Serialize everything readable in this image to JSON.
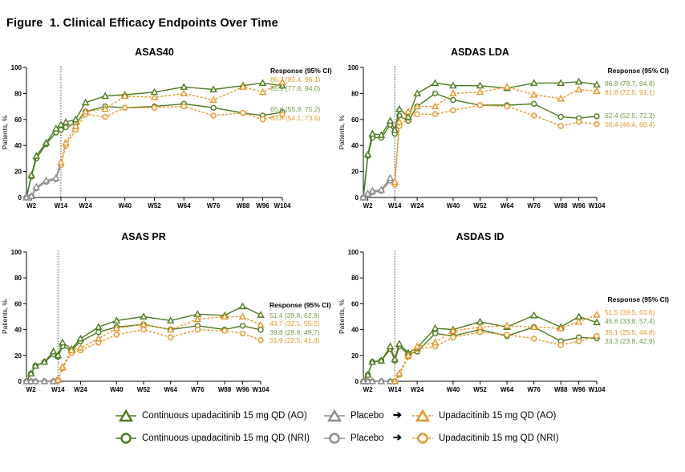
{
  "figure_title": "Figure  1. Clinical Efficacy Endpoints Over Time",
  "colors": {
    "continuous": "#4a7a1e",
    "continuous_light": "#6f9a46",
    "placebo": "#8c8c8c",
    "switch": "#e59526"
  },
  "legend": {
    "ao_continuous": "Continuous upadacitinib 15 mg QD (AO)",
    "ao_placebo": "Placebo",
    "ao_switch": "Upadacitinib 15 mg QD (AO)",
    "nri_continuous": "Continuous upadacitinib 15 mg QD (NRI)",
    "nri_placebo": "Placebo",
    "nri_switch": "Upadacitinib 15 mg QD (NRI)",
    "arrow": "➔"
  },
  "chart_data": [
    {
      "type": "line",
      "title": "ASAS40",
      "ylabel": "Patients, %",
      "ylim": [
        0,
        100
      ],
      "yticks": [
        0,
        20,
        40,
        60,
        80,
        100
      ],
      "xlim": [
        0,
        104
      ],
      "xticks": [
        {
          "w": 2,
          "label": "W2"
        },
        {
          "w": 14,
          "label": "W14"
        },
        {
          "w": 24,
          "label": "W24"
        },
        {
          "w": 40,
          "label": "W40"
        },
        {
          "w": 52,
          "label": "W52"
        },
        {
          "w": 64,
          "label": "W64"
        },
        {
          "w": 76,
          "label": "W76"
        },
        {
          "w": 88,
          "label": "W88"
        },
        {
          "w": 96,
          "label": "W96"
        },
        {
          "w": 104,
          "label": "W104"
        }
      ],
      "switch_week": 14,
      "response_header": "Response (95% CI)",
      "series": [
        {
          "name": "Continuous upadacitinib 15 mg QD (AO)",
          "group": "continuous",
          "marker": "triangle",
          "x": [
            0,
            2,
            4,
            8,
            12,
            14,
            16,
            20,
            24,
            32,
            40,
            52,
            64,
            76,
            88,
            96,
            104
          ],
          "y": [
            0,
            17,
            32,
            42,
            53,
            56,
            58,
            60,
            73,
            78,
            79,
            81,
            85,
            83,
            86,
            88,
            86
          ]
        },
        {
          "name": "Continuous upadacitinib 15 mg QD (NRI)",
          "group": "continuous",
          "marker": "circle",
          "x": [
            0,
            2,
            4,
            8,
            12,
            14,
            16,
            20,
            24,
            32,
            40,
            52,
            64,
            76,
            88,
            96,
            104
          ],
          "y": [
            0,
            16,
            30,
            41,
            50,
            52,
            54,
            57,
            66,
            70,
            69,
            70,
            72,
            69,
            65,
            63,
            65.6
          ]
        },
        {
          "name": "Placebo (AO)",
          "group": "placebo",
          "marker": "triangle",
          "x": [
            0,
            2,
            4,
            8,
            12,
            14
          ],
          "y": [
            0,
            1,
            8,
            13,
            15,
            27
          ]
        },
        {
          "name": "Placebo (NRI)",
          "group": "placebo",
          "marker": "circle",
          "x": [
            0,
            2,
            4,
            8,
            12,
            14
          ],
          "y": [
            0,
            1,
            7,
            12,
            14,
            25
          ]
        },
        {
          "name": "Upadacitinib 15 mg QD (AO)",
          "group": "switch",
          "marker": "triangle",
          "x": [
            14,
            16,
            20,
            24,
            32,
            40,
            52,
            64,
            76,
            88,
            96,
            104
          ],
          "y": [
            27,
            42,
            55,
            66,
            68,
            78,
            77,
            80,
            75,
            85,
            81,
            88.7
          ]
        },
        {
          "name": "Upadacitinib 15 mg QD (NRI)",
          "group": "switch",
          "marker": "circle",
          "x": [
            14,
            16,
            20,
            24,
            32,
            40,
            52,
            64,
            76,
            88,
            96,
            104
          ],
          "y": [
            25,
            40,
            52,
            64,
            62,
            69,
            69,
            70,
            63,
            65,
            60,
            63.8
          ]
        }
      ],
      "responses": [
        {
          "text": "88.7 (81.4, 96.1)",
          "group": "switch"
        },
        {
          "text": "85.9 (77.8, 94.0)",
          "group": "continuous"
        },
        {
          "text": "65.6 (55.9, 75.2)",
          "group": "continuous"
        },
        {
          "text": "63.8 (54.1, 73.5)",
          "group": "switch"
        }
      ]
    },
    {
      "type": "line",
      "title": "ASDAS LDA",
      "ylabel": "Patients, %",
      "ylim": [
        0,
        100
      ],
      "yticks": [
        0,
        20,
        40,
        60,
        80,
        100
      ],
      "xlim": [
        0,
        104
      ],
      "xticks": [
        {
          "w": 2,
          "label": "W2"
        },
        {
          "w": 14,
          "label": "W14"
        },
        {
          "w": 24,
          "label": "W24"
        },
        {
          "w": 40,
          "label": "W40"
        },
        {
          "w": 52,
          "label": "W52"
        },
        {
          "w": 64,
          "label": "W64"
        },
        {
          "w": 76,
          "label": "W76"
        },
        {
          "w": 88,
          "label": "W88"
        },
        {
          "w": 96,
          "label": "W96"
        },
        {
          "w": 104,
          "label": "W104"
        }
      ],
      "switch_week": 14,
      "response_header": "Response (95% CI)",
      "series": [
        {
          "name": "Continuous upadacitinib 15 mg QD (AO)",
          "group": "continuous",
          "marker": "triangle",
          "x": [
            0,
            2,
            4,
            8,
            12,
            14,
            16,
            20,
            24,
            32,
            40,
            52,
            64,
            76,
            88,
            96,
            104
          ],
          "y": [
            0,
            33,
            49,
            48,
            59,
            52,
            68,
            62,
            80,
            88,
            86,
            86,
            84,
            88,
            88,
            89,
            86.8
          ]
        },
        {
          "name": "Continuous upadacitinib 15 mg QD (NRI)",
          "group": "continuous",
          "marker": "circle",
          "x": [
            0,
            2,
            4,
            8,
            12,
            14,
            16,
            20,
            24,
            32,
            40,
            52,
            64,
            76,
            88,
            96,
            104
          ],
          "y": [
            0,
            32,
            46,
            46,
            56,
            49,
            63,
            59,
            70,
            80,
            75,
            71,
            71,
            72,
            62,
            61,
            62.4
          ]
        },
        {
          "name": "Placebo (AO)",
          "group": "placebo",
          "marker": "triangle",
          "x": [
            0,
            2,
            4,
            8,
            12,
            14
          ],
          "y": [
            0,
            3,
            5,
            6,
            15,
            12
          ]
        },
        {
          "name": "Placebo (NRI)",
          "group": "placebo",
          "marker": "circle",
          "x": [
            0,
            2,
            4,
            8,
            12,
            14
          ],
          "y": [
            0,
            2,
            4,
            5,
            13,
            10
          ]
        },
        {
          "name": "Upadacitinib 15 mg QD (AO)",
          "group": "switch",
          "marker": "triangle",
          "x": [
            14,
            16,
            20,
            24,
            32,
            40,
            52,
            64,
            76,
            88,
            96,
            104
          ],
          "y": [
            12,
            58,
            66,
            70,
            70,
            80,
            81,
            85,
            79,
            76,
            83,
            81.8
          ]
        },
        {
          "name": "Upadacitinib 15 mg QD (NRI)",
          "group": "switch",
          "marker": "circle",
          "x": [
            14,
            16,
            20,
            24,
            32,
            40,
            52,
            64,
            76,
            88,
            96,
            104
          ],
          "y": [
            10,
            55,
            61,
            64,
            64,
            67,
            71,
            70,
            63,
            55,
            58,
            56.4
          ]
        }
      ],
      "responses": [
        {
          "text": "86.8 (78.7, 94.8)",
          "group": "continuous"
        },
        {
          "text": "81.8 (72.5, 91.1)",
          "group": "switch"
        },
        {
          "text": "62.4 (52.5, 72.2)",
          "group": "continuous"
        },
        {
          "text": "56.4 (46.4, 66.4)",
          "group": "switch"
        }
      ]
    },
    {
      "type": "line",
      "title": "ASAS PR",
      "ylabel": "Patients, %",
      "ylim": [
        0,
        100
      ],
      "yticks": [
        0,
        20,
        40,
        60,
        80,
        100
      ],
      "xlim": [
        0,
        104
      ],
      "xticks": [
        {
          "w": 2,
          "label": "W2"
        },
        {
          "w": 14,
          "label": "W14"
        },
        {
          "w": 24,
          "label": "W24"
        },
        {
          "w": 40,
          "label": "W40"
        },
        {
          "w": 52,
          "label": "W52"
        },
        {
          "w": 64,
          "label": "W64"
        },
        {
          "w": 76,
          "label": "W76"
        },
        {
          "w": 88,
          "label": "W88"
        },
        {
          "w": 96,
          "label": "W96"
        },
        {
          "w": 104,
          "label": "W104"
        }
      ],
      "switch_week": 14,
      "response_header": "Response (95% CI)",
      "series": [
        {
          "name": "Continuous upadacitinib 15 mg QD (AO)",
          "group": "continuous",
          "marker": "triangle",
          "x": [
            0,
            2,
            4,
            8,
            12,
            14,
            16,
            20,
            24,
            32,
            40,
            52,
            64,
            76,
            88,
            96,
            104
          ],
          "y": [
            0,
            6,
            12,
            15,
            23,
            20,
            30,
            25,
            33,
            42,
            47,
            50,
            47,
            52,
            51,
            58,
            51.4
          ]
        },
        {
          "name": "Continuous upadacitinib 15 mg QD (NRI)",
          "group": "continuous",
          "marker": "circle",
          "x": [
            0,
            2,
            4,
            8,
            12,
            14,
            16,
            20,
            24,
            32,
            40,
            52,
            64,
            76,
            88,
            96,
            104
          ],
          "y": [
            0,
            6,
            12,
            15,
            21,
            19,
            27,
            24,
            31,
            38,
            42,
            44,
            40,
            43,
            40,
            43,
            39.8
          ]
        },
        {
          "name": "Placebo (AO)",
          "group": "placebo",
          "marker": "triangle",
          "x": [
            0,
            2,
            4,
            8,
            12,
            14
          ],
          "y": [
            0,
            0,
            0,
            0,
            0,
            1
          ]
        },
        {
          "name": "Placebo (NRI)",
          "group": "placebo",
          "marker": "circle",
          "x": [
            0,
            2,
            4,
            8,
            12,
            14
          ],
          "y": [
            0,
            0,
            0,
            0,
            0,
            1
          ]
        },
        {
          "name": "Upadacitinib 15 mg QD (AO)",
          "group": "switch",
          "marker": "triangle",
          "x": [
            14,
            16,
            20,
            24,
            32,
            40,
            52,
            64,
            76,
            88,
            96,
            104
          ],
          "y": [
            1,
            11,
            24,
            26,
            33,
            41,
            44,
            40,
            48,
            50,
            50,
            43.7
          ]
        },
        {
          "name": "Upadacitinib 15 mg QD (NRI)",
          "group": "switch",
          "marker": "circle",
          "x": [
            14,
            16,
            20,
            24,
            32,
            40,
            52,
            64,
            76,
            88,
            96,
            104
          ],
          "y": [
            1,
            10,
            22,
            24,
            30,
            36,
            40,
            34,
            40,
            39,
            37,
            31.9
          ]
        }
      ],
      "responses": [
        {
          "text": "51.4 (39.8, 62.9)",
          "group": "continuous"
        },
        {
          "text": "43.7 (32.1, 55.2)",
          "group": "switch"
        },
        {
          "text": "39.8 (29.8, 49.7)",
          "group": "continuous"
        },
        {
          "text": "31.9 (22.5, 41.3)",
          "group": "switch"
        }
      ]
    },
    {
      "type": "line",
      "title": "ASDAS ID",
      "ylabel": "Patients, %",
      "ylim": [
        0,
        100
      ],
      "yticks": [
        0,
        20,
        40,
        60,
        80,
        100
      ],
      "xlim": [
        0,
        104
      ],
      "xticks": [
        {
          "w": 2,
          "label": "W2"
        },
        {
          "w": 14,
          "label": "W14"
        },
        {
          "w": 24,
          "label": "W24"
        },
        {
          "w": 40,
          "label": "W40"
        },
        {
          "w": 52,
          "label": "W52"
        },
        {
          "w": 64,
          "label": "W64"
        },
        {
          "w": 76,
          "label": "W76"
        },
        {
          "w": 88,
          "label": "W88"
        },
        {
          "w": 96,
          "label": "W96"
        },
        {
          "w": 104,
          "label": "W104"
        }
      ],
      "switch_week": 14,
      "response_header": "Response (95% CI)",
      "series": [
        {
          "name": "Continuous upadacitinib 15 mg QD (AO)",
          "group": "continuous",
          "marker": "triangle",
          "x": [
            0,
            2,
            4,
            8,
            12,
            14,
            16,
            20,
            24,
            32,
            40,
            52,
            64,
            76,
            88,
            96,
            104
          ],
          "y": [
            0,
            5,
            15,
            16,
            27,
            17,
            29,
            22,
            26,
            41,
            40,
            46,
            42,
            51,
            42,
            50,
            45.6
          ]
        },
        {
          "name": "Continuous upadacitinib 15 mg QD (NRI)",
          "group": "continuous",
          "marker": "circle",
          "x": [
            0,
            2,
            4,
            8,
            12,
            14,
            16,
            20,
            24,
            32,
            40,
            52,
            64,
            76,
            88,
            96,
            104
          ],
          "y": [
            0,
            5,
            15,
            16,
            25,
            16,
            27,
            21,
            23,
            37,
            35,
            40,
            35,
            42,
            31,
            34,
            33.3
          ]
        },
        {
          "name": "Placebo (AO)",
          "group": "placebo",
          "marker": "triangle",
          "x": [
            0,
            2,
            4,
            8,
            12,
            14
          ],
          "y": [
            0,
            0,
            0,
            0,
            0,
            0
          ]
        },
        {
          "name": "Placebo (NRI)",
          "group": "placebo",
          "marker": "circle",
          "x": [
            0,
            2,
            4,
            8,
            12,
            14
          ],
          "y": [
            0,
            0,
            0,
            0,
            0,
            0
          ]
        },
        {
          "name": "Upadacitinib 15 mg QD (AO)",
          "group": "switch",
          "marker": "triangle",
          "x": [
            14,
            16,
            20,
            24,
            32,
            40,
            52,
            64,
            76,
            88,
            96,
            104
          ],
          "y": [
            0,
            6,
            20,
            27,
            30,
            39,
            42,
            43,
            42,
            41,
            46,
            51.5
          ]
        },
        {
          "name": "Upadacitinib 15 mg QD (NRI)",
          "group": "switch",
          "marker": "circle",
          "x": [
            14,
            16,
            20,
            24,
            32,
            40,
            52,
            64,
            76,
            88,
            96,
            104
          ],
          "y": [
            0,
            5,
            19,
            25,
            27,
            34,
            38,
            36,
            33,
            28,
            31,
            35.1
          ]
        }
      ],
      "responses": [
        {
          "text": "51.5 (39.5, 63.6)",
          "group": "switch"
        },
        {
          "text": "45.6 (33.8, 57.4)",
          "group": "continuous"
        },
        {
          "text": "35.1 (25.5, 44.8)",
          "group": "switch"
        },
        {
          "text": "33.3 (23.8, 42.9)",
          "group": "continuous"
        }
      ]
    }
  ]
}
